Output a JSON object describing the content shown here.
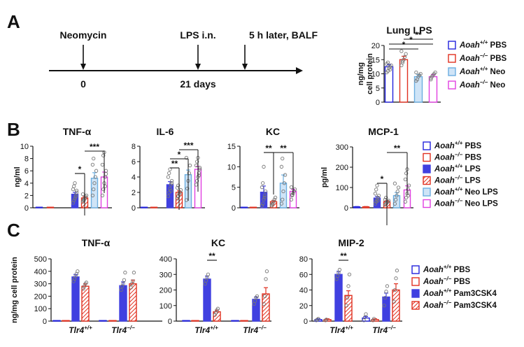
{
  "panel_labels": [
    "A",
    "B",
    "C"
  ],
  "timeline": {
    "events": [
      {
        "label": "Neomycin",
        "day": "0"
      },
      {
        "label": "LPS i.n.",
        "day": "21 days"
      },
      {
        "label": "5 h later, BALF",
        "day": ""
      }
    ]
  },
  "colors": {
    "blue": "#2222dd",
    "red": "#e03020",
    "lightblue": "#6baee0",
    "magenta": "#e040e0",
    "solid_blue": "#4040e0",
    "bar_light_fill": "#cfe4f7",
    "gray_dot": "#777777"
  },
  "legends": {
    "A": [
      {
        "gene": "Aoah",
        "sup": "+/+",
        "rest": " PBS",
        "style": "open",
        "color": "blue"
      },
      {
        "gene": "Aoah",
        "sup": "−/−",
        "rest": " PBS",
        "style": "open",
        "color": "red"
      },
      {
        "gene": "Aoah",
        "sup": "+/+",
        "rest": " Neo",
        "style": "lightfill",
        "color": "lightblue"
      },
      {
        "gene": "Aoah",
        "sup": "−/−",
        "rest": " Neo",
        "style": "open",
        "color": "magenta"
      }
    ],
    "B": [
      {
        "gene": "Aoah",
        "sup": "+/+",
        "rest": " PBS",
        "style": "open",
        "color": "blue"
      },
      {
        "gene": "Aoah",
        "sup": "−/−",
        "rest": " PBS",
        "style": "open",
        "color": "red"
      },
      {
        "gene": "Aoah",
        "sup": "+/+",
        "rest": " LPS",
        "style": "solid",
        "color": "solid_blue"
      },
      {
        "gene": "Aoah",
        "sup": "−/−",
        "rest": " LPS",
        "style": "hatch",
        "color": "red"
      },
      {
        "gene": "Aoah",
        "sup": "+/+",
        "rest": " Neo LPS",
        "style": "lightfill",
        "color": "lightblue"
      },
      {
        "gene": "Aoah",
        "sup": "−/−",
        "rest": " Neo LPS",
        "style": "open",
        "color": "magenta"
      }
    ],
    "C": [
      {
        "gene": "Aoah",
        "sup": "+/+",
        "rest": " PBS",
        "style": "open",
        "color": "blue"
      },
      {
        "gene": "Aoah",
        "sup": "−/−",
        "rest": " PBS",
        "style": "open",
        "color": "red"
      },
      {
        "gene": "Aoah",
        "sup": "+/+",
        "rest": " Pam3CSK4",
        "style": "solid",
        "color": "solid_blue"
      },
      {
        "gene": "Aoah",
        "sup": "−/−",
        "rest": " Pam3CSK4",
        "style": "hatch",
        "color": "red"
      }
    ]
  },
  "chart_data": [
    {
      "id": "A-lung-lps",
      "panel": "A",
      "type": "bar",
      "title": "Lung LPS",
      "ylabel_lines": [
        "ng/mg",
        "cell protein"
      ],
      "ylim": [
        0,
        20
      ],
      "yticks": [
        0,
        5,
        10,
        15,
        20
      ],
      "bars": [
        {
          "value": 12.5,
          "err": 0.8,
          "style": "open",
          "color": "blue",
          "points": [
            10.5,
            11,
            12,
            12.5,
            13,
            13.5,
            14,
            12,
            11.5
          ]
        },
        {
          "value": 15.0,
          "err": 1.2,
          "style": "open",
          "color": "red",
          "points": [
            13,
            14,
            15,
            16,
            17,
            18,
            14.5
          ]
        },
        {
          "value": 9.0,
          "err": 0.8,
          "style": "lightfill",
          "color": "lightblue",
          "points": [
            7.5,
            8,
            9,
            9.5,
            10,
            10.5
          ]
        },
        {
          "value": 9.0,
          "err": 0.8,
          "style": "open",
          "color": "magenta",
          "points": [
            8,
            9,
            9.5,
            10,
            10.5,
            8.5
          ]
        }
      ],
      "significance": [
        {
          "from": 0,
          "to": 2,
          "label": "*"
        },
        {
          "from": 0,
          "to": 3,
          "label": "*"
        },
        {
          "from": 1,
          "to": 3,
          "label": "**"
        }
      ]
    },
    {
      "id": "B-tnf",
      "panel": "B",
      "type": "bar",
      "title": "TNF-α",
      "ylabel": "ng/ml",
      "ylim": [
        0,
        10
      ],
      "yticks": [
        0,
        2,
        4,
        6,
        8,
        10
      ],
      "bars": [
        {
          "value": 0.05,
          "err": 0,
          "style": "open",
          "color": "blue",
          "points": []
        },
        {
          "value": 0.05,
          "err": 0,
          "style": "open",
          "color": "red",
          "points": []
        },
        {
          "value": 2.2,
          "err": 0.3,
          "style": "solid",
          "color": "solid_blue",
          "points": [
            0.8,
            1.2,
            1.5,
            2,
            2.5,
            3,
            3.5,
            4,
            1.8,
            2.8
          ]
        },
        {
          "value": 1.6,
          "err": 0.2,
          "style": "hatch",
          "color": "red",
          "points": [
            1,
            1.3,
            1.5,
            1.8,
            2,
            2.2,
            1.2
          ]
        },
        {
          "value": 4.8,
          "err": 0.9,
          "style": "lightfill",
          "color": "lightblue",
          "points": [
            2,
            3,
            4,
            5,
            6,
            7,
            8
          ]
        },
        {
          "value": 5.0,
          "err": 0.8,
          "style": "open",
          "color": "magenta",
          "points": [
            2,
            3,
            4,
            5,
            6,
            7,
            8.5,
            9,
            3.5,
            5.5
          ]
        }
      ],
      "significance": [
        {
          "from": 2,
          "to": 3,
          "label": "*"
        },
        {
          "from": 3,
          "to": 5,
          "label": "***"
        }
      ]
    },
    {
      "id": "B-il6",
      "panel": "B",
      "type": "bar",
      "title": "IL-6",
      "ylabel": "",
      "ylim": [
        0,
        8
      ],
      "yticks": [
        0,
        2,
        4,
        6,
        8
      ],
      "bars": [
        {
          "value": 0.05,
          "err": 0,
          "style": "open",
          "color": "blue",
          "points": []
        },
        {
          "value": 0.05,
          "err": 0,
          "style": "open",
          "color": "red",
          "points": []
        },
        {
          "value": 3.0,
          "err": 0.4,
          "style": "solid",
          "color": "solid_blue",
          "points": [
            1.5,
            2,
            2.5,
            3,
            3.5,
            4,
            4.5,
            5,
            2.2,
            3.2
          ]
        },
        {
          "value": 2.0,
          "err": 0.2,
          "style": "hatch",
          "color": "red",
          "points": [
            1.2,
            1.5,
            1.8,
            2,
            2.3,
            2.6,
            2.9
          ]
        },
        {
          "value": 4.3,
          "err": 0.6,
          "style": "lightfill",
          "color": "lightblue",
          "points": [
            1,
            2.5,
            3.5,
            4.5,
            5.5,
            6.5
          ]
        },
        {
          "value": 5.0,
          "err": 0.4,
          "style": "open",
          "color": "magenta",
          "points": [
            3,
            3.5,
            4,
            4.5,
            5,
            5.5,
            6,
            6.5,
            4.2,
            5.2
          ]
        }
      ],
      "significance": [
        {
          "from": 2,
          "to": 3,
          "label": "**"
        },
        {
          "from": 2,
          "to": 4,
          "label": "*"
        },
        {
          "from": 3,
          "to": 5,
          "label": "***"
        }
      ]
    },
    {
      "id": "B-kc",
      "panel": "B",
      "type": "bar",
      "title": "KC",
      "ylabel": "",
      "ylim": [
        0,
        15
      ],
      "yticks": [
        0,
        5,
        10,
        15
      ],
      "bars": [
        {
          "value": 0.05,
          "err": 0,
          "style": "open",
          "color": "blue",
          "points": []
        },
        {
          "value": 0.05,
          "err": 0,
          "style": "open",
          "color": "red",
          "points": []
        },
        {
          "value": 3.8,
          "err": 1.5,
          "style": "solid",
          "color": "solid_blue",
          "points": [
            0.5,
            1,
            2,
            3,
            4,
            5,
            6,
            10,
            2.5
          ]
        },
        {
          "value": 1.5,
          "err": 0.3,
          "style": "hatch",
          "color": "red",
          "points": [
            0.5,
            1,
            1.5,
            2,
            2.5,
            0.8
          ]
        },
        {
          "value": 6.0,
          "err": 2.0,
          "style": "lightfill",
          "color": "lightblue",
          "points": [
            1,
            2,
            4,
            6,
            8,
            10,
            12
          ]
        },
        {
          "value": 4.0,
          "err": 0.5,
          "style": "open",
          "color": "magenta",
          "points": [
            2,
            3,
            3.5,
            4,
            4.5,
            5,
            3.2
          ]
        }
      ],
      "significance": [
        {
          "from": 2,
          "to": 3,
          "label": "**"
        },
        {
          "from": 3,
          "to": 5,
          "label": "**"
        }
      ]
    },
    {
      "id": "B-mcp1",
      "panel": "B",
      "type": "bar",
      "title": "MCP-1",
      "ylabel": "pg/ml",
      "ylim": [
        0,
        300
      ],
      "yticks": [
        0,
        100,
        200,
        300
      ],
      "bars": [
        {
          "value": 5,
          "err": 1,
          "style": "open",
          "color": "blue",
          "points": []
        },
        {
          "value": 5,
          "err": 1,
          "style": "open",
          "color": "red",
          "points": []
        },
        {
          "value": 48,
          "err": 8,
          "style": "solid",
          "color": "solid_blue",
          "points": [
            20,
            30,
            40,
            50,
            60,
            70,
            90,
            110,
            35
          ]
        },
        {
          "value": 30,
          "err": 5,
          "style": "hatch",
          "color": "red",
          "points": [
            15,
            20,
            25,
            30,
            35,
            40,
            50
          ]
        },
        {
          "value": 60,
          "err": 15,
          "style": "lightfill",
          "color": "lightblue",
          "points": [
            20,
            40,
            60,
            80,
            100,
            120
          ]
        },
        {
          "value": 88,
          "err": 20,
          "style": "open",
          "color": "magenta",
          "points": [
            30,
            50,
            70,
            90,
            110,
            140,
            170,
            190,
            60
          ]
        }
      ],
      "significance": [
        {
          "from": 2,
          "to": 3,
          "label": "*"
        },
        {
          "from": 3,
          "to": 5,
          "label": "**"
        }
      ]
    },
    {
      "id": "C-tnf",
      "panel": "C",
      "type": "bar",
      "title": "TNF-α",
      "ylabel": "ng/mg cell protein",
      "ylim": [
        0,
        500
      ],
      "yticks": [
        0,
        100,
        200,
        300,
        400,
        500
      ],
      "categories": [
        "Tlr4+/+",
        "Tlr4−/−"
      ],
      "bars": [
        {
          "value": 3,
          "err": 0,
          "style": "open",
          "color": "blue",
          "points": []
        },
        {
          "value": 3,
          "err": 0,
          "style": "open",
          "color": "red",
          "points": []
        },
        {
          "value": 355,
          "err": 20,
          "style": "solid",
          "color": "solid_blue",
          "points": [
            320,
            340,
            360,
            380,
            400
          ]
        },
        {
          "value": 280,
          "err": 20,
          "style": "hatch",
          "color": "red",
          "points": [
            260,
            280,
            300,
            310
          ]
        },
        {
          "value": 3,
          "err": 0,
          "style": "open",
          "color": "blue",
          "points": []
        },
        {
          "value": 3,
          "err": 0,
          "style": "open",
          "color": "red",
          "points": []
        },
        {
          "value": 285,
          "err": 30,
          "style": "solid",
          "color": "solid_blue",
          "points": [
            250,
            280,
            300,
            330,
            390
          ]
        },
        {
          "value": 300,
          "err": 30,
          "style": "hatch",
          "color": "red",
          "points": [
            270,
            300,
            320,
            390
          ]
        }
      ],
      "significance": []
    },
    {
      "id": "C-kc",
      "panel": "C",
      "type": "bar",
      "title": "KC",
      "ylabel": "",
      "ylim": [
        0,
        400
      ],
      "yticks": [
        0,
        100,
        200,
        300,
        400
      ],
      "categories": [
        "Tlr4+/+",
        "Tlr4−/−"
      ],
      "bars": [
        {
          "value": 2,
          "err": 0,
          "style": "open",
          "color": "blue",
          "points": []
        },
        {
          "value": 2,
          "err": 0,
          "style": "open",
          "color": "red",
          "points": []
        },
        {
          "value": 270,
          "err": 20,
          "style": "solid",
          "color": "solid_blue",
          "points": [
            240,
            260,
            280,
            300
          ]
        },
        {
          "value": 60,
          "err": 10,
          "style": "hatch",
          "color": "red",
          "points": [
            40,
            55,
            70,
            80
          ]
        },
        {
          "value": 2,
          "err": 0,
          "style": "open",
          "color": "blue",
          "points": []
        },
        {
          "value": 2,
          "err": 0,
          "style": "open",
          "color": "red",
          "points": []
        },
        {
          "value": 140,
          "err": 15,
          "style": "solid",
          "color": "solid_blue",
          "points": [
            110,
            130,
            150,
            160
          ]
        },
        {
          "value": 175,
          "err": 40,
          "style": "hatch",
          "color": "red",
          "points": [
            110,
            160,
            270,
            320
          ]
        }
      ],
      "significance": [
        {
          "from": 2,
          "to": 3,
          "label": "**"
        }
      ]
    },
    {
      "id": "C-mip2",
      "panel": "C",
      "type": "bar",
      "title": "MIP-2",
      "ylabel": "",
      "ylim": [
        0,
        80
      ],
      "yticks": [
        0,
        20,
        40,
        60,
        80
      ],
      "categories": [
        "Tlr4+/+",
        "Tlr4−/−"
      ],
      "bars": [
        {
          "value": 2,
          "err": 1,
          "style": "open",
          "color": "blue",
          "points": [
            1,
            2,
            3
          ]
        },
        {
          "value": 2,
          "err": 1,
          "style": "open",
          "color": "red",
          "points": [
            1,
            2
          ]
        },
        {
          "value": 60,
          "err": 4,
          "style": "solid",
          "color": "solid_blue",
          "points": [
            54,
            58,
            62,
            66
          ]
        },
        {
          "value": 33,
          "err": 6,
          "style": "hatch",
          "color": "red",
          "points": [
            20,
            30,
            45,
            60
          ]
        },
        {
          "value": 4,
          "err": 2,
          "style": "open",
          "color": "blue",
          "points": [
            1,
            5,
            9
          ]
        },
        {
          "value": 2,
          "err": 1,
          "style": "open",
          "color": "red",
          "points": [
            1,
            3
          ]
        },
        {
          "value": 31,
          "err": 5,
          "style": "solid",
          "color": "solid_blue",
          "points": [
            20,
            30,
            38,
            45
          ]
        },
        {
          "value": 40,
          "err": 8,
          "style": "hatch",
          "color": "red",
          "points": [
            25,
            40,
            55,
            65
          ]
        }
      ],
      "significance": [
        {
          "from": 2,
          "to": 3,
          "label": "**"
        }
      ]
    }
  ]
}
